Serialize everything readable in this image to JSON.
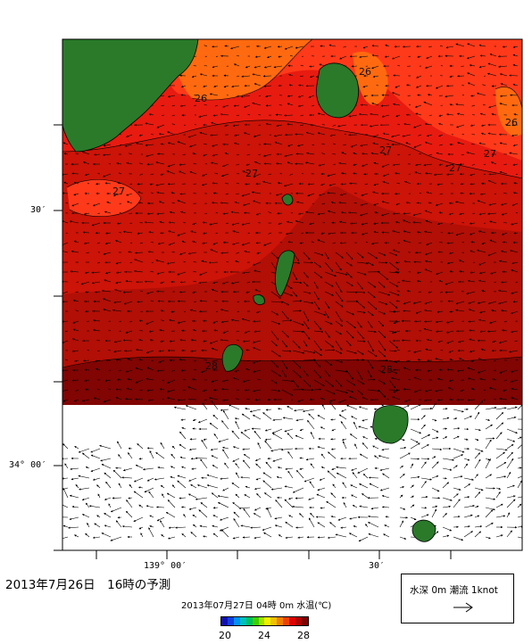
{
  "map": {
    "lat_labels": [
      "30′",
      "34° 00′"
    ],
    "lon_labels": [
      "139° 00′",
      "30′"
    ],
    "contour_labels": [
      "26",
      "26",
      "26",
      "27",
      "27",
      "27",
      "27",
      "27",
      "28",
      "28"
    ]
  },
  "footer": {
    "forecast_title": "2013年7月26日　16時の予測",
    "valid_time": "2013年07月27日 04時 0m 水温(℃)",
    "colorbar_ticks": [
      "20",
      "24",
      "28"
    ],
    "colorbar_colors": [
      "#1010b0",
      "#1040e0",
      "#0090f0",
      "#00c0c0",
      "#00c060",
      "#40d000",
      "#a0e000",
      "#f0f000",
      "#f0c000",
      "#f08000",
      "#f04000",
      "#e00000",
      "#b00000",
      "#800000"
    ]
  },
  "legend": {
    "label": "水深 0m  潮流  1knot",
    "arrow_icon": "right-arrow-icon"
  },
  "colors": {
    "land": "#2a7a2a",
    "sst_26": "#ff6a10",
    "sst_27": "#ff3a1a",
    "sst_27_5": "#e81b10",
    "sst_28": "#cc1408",
    "sst_28_5": "#a00c04",
    "sst_29": "#7c0402"
  }
}
